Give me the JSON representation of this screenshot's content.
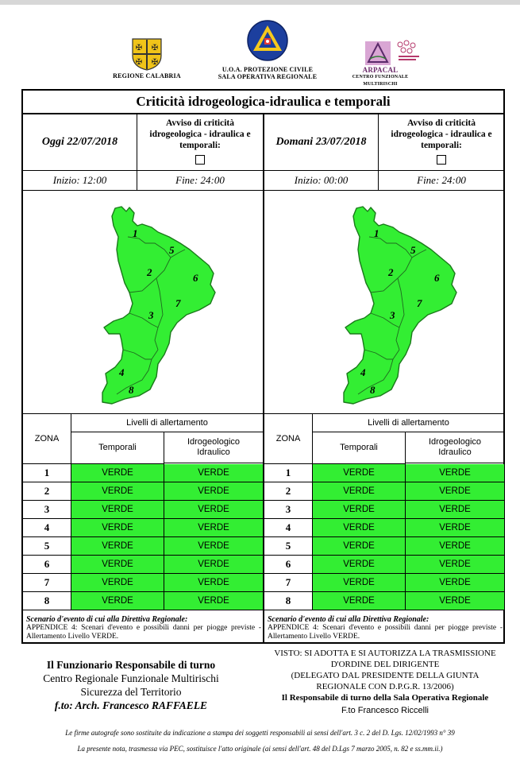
{
  "header": {
    "left_logo_caption": "REGIONE CALABRIA",
    "center_logo_caption_line1": "U.O.A. PROTEZIONE CIVILE",
    "center_logo_caption_line2": "SALA OPERATIVA REGIONALE",
    "center_emblem_text": "PROTEZIONE CIVILE",
    "right_logo_caption_line1": "ARPACAL",
    "right_logo_caption_line2": "CENTRO FUNZIONALE MULTIRISCHI"
  },
  "title": "Criticità idrogeologica-idraulica e temporali",
  "days": [
    {
      "date": "Oggi 22/07/2018",
      "avviso_line1": "Avviso di criticità",
      "avviso_line2": "idrogeologica - idraulica e",
      "avviso_line3": "temporali:",
      "inizio": "Inizio: 12:00",
      "fine": "Fine: 24:00"
    },
    {
      "date": "Domani 23/07/2018",
      "avviso_line1": "Avviso di criticità",
      "avviso_line2": "idrogeologica - idraulica e",
      "avviso_line3": "temporali:",
      "inizio": "Inizio: 00:00",
      "fine": "Fine: 24:00"
    }
  ],
  "map_zone_labels": [
    "1",
    "2",
    "3",
    "4",
    "5",
    "6",
    "7",
    "8"
  ],
  "map_fill_color": "#33ee33",
  "table": {
    "zona_header": "ZONA",
    "levels_header": "Livelli di allertamento",
    "temporali_header": "Temporali",
    "idro_header_line1": "Idrogeologico",
    "idro_header_line2": "Idraulico",
    "rows": [
      {
        "zone": "1",
        "temporali": "VERDE",
        "idro": "VERDE"
      },
      {
        "zone": "2",
        "temporali": "VERDE",
        "idro": "VERDE"
      },
      {
        "zone": "3",
        "temporali": "VERDE",
        "idro": "VERDE"
      },
      {
        "zone": "4",
        "temporali": "VERDE",
        "idro": "VERDE"
      },
      {
        "zone": "5",
        "temporali": "VERDE",
        "idro": "VERDE"
      },
      {
        "zone": "6",
        "temporali": "VERDE",
        "idro": "VERDE"
      },
      {
        "zone": "7",
        "temporali": "VERDE",
        "idro": "VERDE"
      },
      {
        "zone": "8",
        "temporali": "VERDE",
        "idro": "VERDE"
      }
    ],
    "level_color": "#33ee33"
  },
  "scenario": {
    "title": "Scenario d'evento di cui alla Direttiva Regionale:",
    "body": "APPENDICE 4: Scenari d'evento e possibili danni per piogge previste - Allertamento Livello VERDE."
  },
  "footer_left": {
    "line1": "Il Funzionario Responsabile di turno",
    "line2": "Centro Regionale Funzionale Multirischi",
    "line3": "Sicurezza del Territorio",
    "line4": "f.to: Arch. Francesco RAFFAELE"
  },
  "footer_right": {
    "line1": "VISTO: SI ADOTTA E SI AUTORIZZA LA TRASMISSIONE",
    "line2": "D'ORDINE DEL DIRIGENTE",
    "line3": "(DELEGATO DAL PRESIDENTE DELLA GIUNTA",
    "line4": "REGIONALE CON D.P.G.R. 13/2006)",
    "line5": "Il Responsabile di turno della Sala Operativa Regionale",
    "line6": "F.to Francesco Riccelli"
  },
  "notes": {
    "line1": "Le firme autografe sono sostituite da indicazione a stampa dei soggetti responsabili ai sensi dell'art. 3 c. 2 del D. Lgs. 12/02/1993 n° 39",
    "line2": "La presente nota, trasmessa via PEC, sostituisce l'atto originale (ai sensi dell'art. 48 del D.Lgs 7 marzo 2005, n. 82 e ss.mm.ii.)"
  }
}
